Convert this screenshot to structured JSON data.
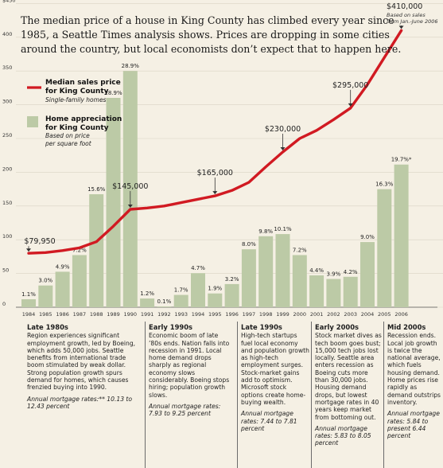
{
  "headline": "The median price of a house in King County has climbed every year since 1985, a Seattle Times analysis shows. Prices are dropping in some cities around the country, but local economists don’t expect that to happen here.",
  "top_note": {
    "value_label": "$410,000",
    "note_line1": "Based on sales",
    "note_line2": "from Jan.-June 2006"
  },
  "legend": {
    "line_title1": "Median sales price",
    "line_title2": "for King County",
    "line_sub": "Single-family homes",
    "bar_title1": "Home appreciation",
    "bar_title2": "for King County",
    "bar_sub1": "Based on price",
    "bar_sub2": "per square foot"
  },
  "colors": {
    "line": "#d11a22",
    "bar": "#bccaa6",
    "background": "#f5f0e4",
    "axis": "#555555"
  },
  "chart_data": {
    "type": "bar",
    "categories": [
      "1984",
      "1985",
      "1986",
      "1987",
      "1988",
      "1989",
      "1990",
      "1991",
      "1992",
      "1993",
      "1994",
      "1995",
      "1996",
      "1997",
      "1998",
      "1999",
      "2000",
      "2001",
      "2002",
      "2003",
      "2004",
      "2005",
      "2006"
    ],
    "y_ticks": [
      "$450",
      "400",
      "350",
      "300",
      "250",
      "200",
      "150",
      "100",
      "50",
      "0"
    ],
    "ylim": [
      0,
      450
    ],
    "series": [
      {
        "name": "Median sales price for King County",
        "kind": "line",
        "values": [
          79.95,
          81,
          84,
          88,
          97,
          120,
          145,
          147,
          150,
          155,
          160,
          165,
          173,
          185,
          208,
          230,
          250,
          262,
          278,
          295,
          330,
          370,
          410
        ]
      },
      {
        "name": "Home appreciation for King County",
        "kind": "bar",
        "values": [
          1.1,
          3.0,
          4.9,
          7.2,
          15.6,
          28.9,
          null,
          1.2,
          0.1,
          1.7,
          4.7,
          1.9,
          3.2,
          8.0,
          9.8,
          10.1,
          7.2,
          4.4,
          3.9,
          4.2,
          9.0,
          16.3,
          19.7
        ],
        "labels": [
          "1.1%",
          "3.0%",
          "4.9%",
          "7.2%",
          "15.6%",
          "28.9%",
          "",
          "1.2%",
          "0.1%",
          "1.7%",
          "4.7%",
          "1.9%",
          "3.2%",
          "8.0%",
          "9.8%",
          "10.1%",
          "7.2%",
          "4.4%",
          "3.9%",
          "4.2%",
          "9.0%",
          "16.3%",
          "19.7%*"
        ]
      }
    ],
    "callouts": [
      {
        "year_index": 0,
        "label": "$79,950"
      },
      {
        "year_index": 6,
        "label": "$145,000"
      },
      {
        "year_index": 11,
        "label": "$165,000"
      },
      {
        "year_index": 15,
        "label": "$230,000"
      },
      {
        "year_index": 19,
        "label": "$295,000"
      }
    ]
  },
  "eras": [
    {
      "title": "Late 1980s",
      "body": "Region experiences significant employment growth, led by Boeing, which adds 50,000 jobs. Seattle benefits from international trade boom stimulated by weak dollar. Strong population growth spurs demand for homes, which causes frenzied buying into 1990.",
      "rate": "Annual mortgage rates:** 10.13 to 12.43 percent"
    },
    {
      "title": "Early 1990s",
      "body": "Economic boom of late ’80s ends. Nation falls into recession in 1991. Local home demand drops sharply as regional economy slows considerably. Boeing stops hiring; population growth slows.",
      "rate": "Annual mortgage rates: 7.93 to 9.25 percent"
    },
    {
      "title": "Late 1990s",
      "body": "High-tech startups fuel local economy and population growth as high-tech employment surges. Stock-market gains add to optimism. Microsoft stock options create home-buying wealth.",
      "rate": "Annual mortgage rates: 7.44 to 7.81 percent"
    },
    {
      "title": "Early 2000s",
      "body": "Stock market dives as tech boom goes bust; 15,000 tech jobs lost locally. Seattle area enters recession as Boeing cuts more than 30,000 jobs. Housing demand drops, but lowest mortgage rates in 40 years keep market from bottoming out.",
      "rate": "Annual mortgage rates: 5.83 to 8.05 percent"
    },
    {
      "title": "Mid 2000s",
      "body": "Recession ends. Local job growth is twice the national average, which fuels housing demand. Home prices rise rapidly as demand outstrips inventory.",
      "rate": "Annual mortgage rates: 5.84 to present 6.44 percent"
    }
  ]
}
